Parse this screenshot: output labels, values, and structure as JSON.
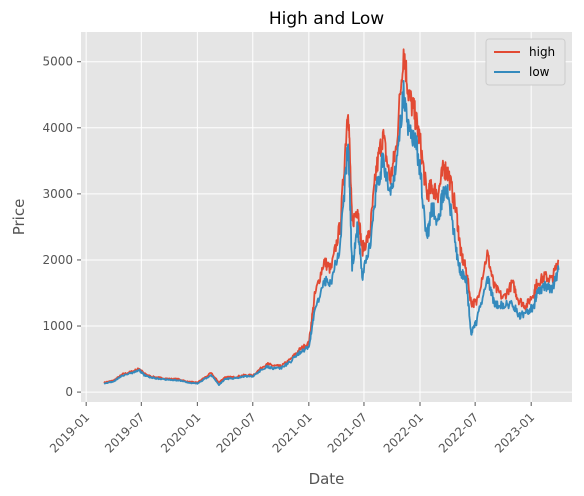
{
  "chart_data": {
    "type": "line",
    "title": "High and Low",
    "xlabel": "Date",
    "ylabel": "Price",
    "grid": true,
    "legend_position": "top-right",
    "xlim": [
      "2018-12-15",
      "2023-05-15"
    ],
    "ylim": [
      -150,
      5450
    ],
    "x_ticks": [
      "2019-01",
      "2019-07",
      "2020-01",
      "2020-07",
      "2021-01",
      "2021-07",
      "2022-01",
      "2022-07",
      "2023-01"
    ],
    "y_ticks": [
      0,
      1000,
      2000,
      3000,
      4000,
      5000
    ],
    "x": [
      "2019-03-01",
      "2019-04-01",
      "2019-05-01",
      "2019-06-01",
      "2019-06-25",
      "2019-07-10",
      "2019-08-01",
      "2019-09-01",
      "2019-10-01",
      "2019-11-01",
      "2019-12-01",
      "2020-01-01",
      "2020-02-15",
      "2020-03-12",
      "2020-04-01",
      "2020-05-01",
      "2020-06-01",
      "2020-07-01",
      "2020-08-15",
      "2020-09-05",
      "2020-10-01",
      "2020-11-01",
      "2020-12-01",
      "2021-01-01",
      "2021-01-20",
      "2021-02-20",
      "2021-03-15",
      "2021-04-15",
      "2021-05-10",
      "2021-05-23",
      "2021-06-10",
      "2021-06-25",
      "2021-07-20",
      "2021-08-10",
      "2021-09-01",
      "2021-09-25",
      "2021-10-15",
      "2021-11-08",
      "2021-11-25",
      "2021-12-15",
      "2022-01-01",
      "2022-01-23",
      "2022-02-10",
      "2022-03-01",
      "2022-03-20",
      "2022-04-05",
      "2022-05-01",
      "2022-05-15",
      "2022-06-01",
      "2022-06-18",
      "2022-07-05",
      "2022-08-10",
      "2022-09-01",
      "2022-10-01",
      "2022-11-01",
      "2022-11-20",
      "2022-12-15",
      "2023-01-10",
      "2023-01-20",
      "2023-02-15",
      "2023-03-10",
      "2023-04-01"
    ],
    "series": [
      {
        "name": "high",
        "color": "#E24A33",
        "values": [
          145,
          175,
          270,
          310,
          355,
          280,
          235,
          215,
          200,
          195,
          155,
          145,
          285,
          145,
          225,
          225,
          255,
          255,
          430,
          400,
          390,
          490,
          640,
          740,
          1450,
          1980,
          1850,
          2550,
          4390,
          2550,
          2800,
          2150,
          2400,
          3350,
          3900,
          3200,
          3700,
          5200,
          4500,
          4200,
          3800,
          3000,
          3100,
          3000,
          3400,
          3300,
          2700,
          2100,
          1850,
          1350,
          1350,
          2100,
          1600,
          1420,
          1650,
          1400,
          1300,
          1500,
          1650,
          1750,
          1700,
          2000
        ]
      },
      {
        "name": "low",
        "color": "#348ABD",
        "values": [
          130,
          160,
          255,
          290,
          330,
          260,
          220,
          200,
          185,
          180,
          140,
          130,
          260,
          110,
          200,
          210,
          235,
          240,
          390,
          360,
          360,
          460,
          590,
          690,
          1200,
          1700,
          1650,
          2250,
          3800,
          1900,
          2500,
          1750,
          2200,
          3050,
          3500,
          2950,
          3450,
          4500,
          4000,
          3850,
          3400,
          2300,
          2800,
          2600,
          3050,
          3000,
          2100,
          1800,
          1700,
          900,
          1050,
          1750,
          1350,
          1300,
          1350,
          1150,
          1200,
          1300,
          1500,
          1600,
          1550,
          1850
        ]
      }
    ]
  }
}
